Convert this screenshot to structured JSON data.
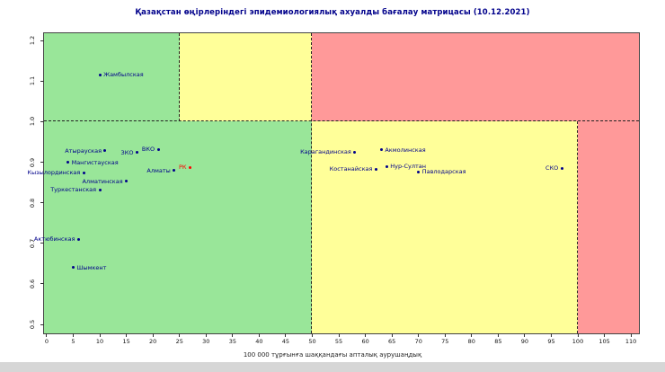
{
  "window": {
    "background": "#ffffff",
    "bottom_bar_color": "#d6d6d6"
  },
  "chart_data": {
    "type": "scatter",
    "title": "Қазақстан өңірлеріндегі эпидемиологиялық ахуалды бағалау матрицасы  (10.12.2021)",
    "title_color": "#00008B",
    "xlabel": "100 000 тұрғынға шаққандағы апталық аурушаңдық",
    "ylabel": "",
    "xlim": [
      -0.5,
      111.5
    ],
    "ylim": [
      0.478,
      1.218
    ],
    "grid": false,
    "legend": "none",
    "xticks": [
      0,
      5,
      10,
      15,
      20,
      25,
      30,
      35,
      40,
      45,
      50,
      55,
      60,
      65,
      70,
      75,
      80,
      85,
      90,
      95,
      100,
      105,
      110
    ],
    "yticks": [
      "0.5",
      "0.6",
      "0.7",
      "0.8",
      "0.9",
      "1.0",
      "1.1",
      "1.2"
    ],
    "thresholds": {
      "rt_line": 1.0,
      "incidence_lines": [
        25,
        50,
        100
      ]
    },
    "zone_colors": {
      "green": "#99E699",
      "yellow": "#FFFF99",
      "red": "#FF9999"
    },
    "zones": [
      {
        "name": "green-top",
        "x0": -0.5,
        "x1": 25,
        "y0": 1.0,
        "y1": 1.218,
        "color": "#99E699"
      },
      {
        "name": "yellow-top",
        "x0": 25,
        "x1": 50,
        "y0": 1.0,
        "y1": 1.218,
        "color": "#FFFF99"
      },
      {
        "name": "red-top",
        "x0": 50,
        "x1": 111.5,
        "y0": 1.0,
        "y1": 1.218,
        "color": "#FF9999"
      },
      {
        "name": "green-bottom",
        "x0": -0.5,
        "x1": 50,
        "y0": 0.478,
        "y1": 1.0,
        "color": "#99E699"
      },
      {
        "name": "yellow-bottom",
        "x0": 50,
        "x1": 100,
        "y0": 0.478,
        "y1": 1.0,
        "color": "#FFFF99"
      },
      {
        "name": "red-bottom",
        "x0": 100,
        "x1": 111.5,
        "y0": 0.478,
        "y1": 1.0,
        "color": "#FF9999"
      }
    ],
    "boundary_lines": [
      {
        "type": "h",
        "y": 1.0,
        "x0": -0.5,
        "x1": 111.5
      },
      {
        "type": "v",
        "x": 25,
        "y0": 1.0,
        "y1": 1.218
      },
      {
        "type": "v",
        "x": 50,
        "y0": 0.478,
        "y1": 1.218
      },
      {
        "type": "v",
        "x": 100,
        "y0": 0.478,
        "y1": 1.0
      }
    ],
    "point_color": "#00008B",
    "points": [
      {
        "name": "Жамбылская",
        "x": 10,
        "y": 1.115,
        "side": "right"
      },
      {
        "name": "Атырауская",
        "x": 11,
        "y": 0.928,
        "side": "left"
      },
      {
        "name": "ЗКО",
        "x": 17,
        "y": 0.924,
        "side": "left"
      },
      {
        "name": "ВКО",
        "x": 21,
        "y": 0.932,
        "side": "left"
      },
      {
        "name": "РК",
        "x": 27,
        "y": 0.887,
        "side": "left",
        "color": "#FF0000"
      },
      {
        "name": "Мангистауская",
        "x": 4,
        "y": 0.9,
        "side": "right"
      },
      {
        "name": "Кызылординская",
        "x": 7,
        "y": 0.874,
        "side": "left"
      },
      {
        "name": "Алматы",
        "x": 24,
        "y": 0.88,
        "side": "left"
      },
      {
        "name": "Алматинская",
        "x": 15,
        "y": 0.853,
        "side": "left"
      },
      {
        "name": "Туркестанская",
        "x": 10,
        "y": 0.832,
        "side": "left"
      },
      {
        "name": "Актюбинская",
        "x": 6,
        "y": 0.71,
        "side": "left"
      },
      {
        "name": "Шымкент",
        "x": 5,
        "y": 0.64,
        "side": "right"
      },
      {
        "name": "Карагандинская",
        "x": 58,
        "y": 0.925,
        "side": "left"
      },
      {
        "name": "Акмолинская",
        "x": 63,
        "y": 0.931,
        "side": "right"
      },
      {
        "name": "Нур-Султан",
        "x": 64,
        "y": 0.89,
        "side": "right"
      },
      {
        "name": "Костанайская",
        "x": 62,
        "y": 0.883,
        "side": "left"
      },
      {
        "name": "Павлодарская",
        "x": 70,
        "y": 0.876,
        "side": "right"
      },
      {
        "name": "СКО",
        "x": 97,
        "y": 0.885,
        "side": "left"
      }
    ]
  }
}
